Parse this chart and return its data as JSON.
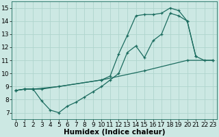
{
  "line1_x": [
    0,
    1,
    2,
    3,
    10,
    11,
    12,
    13,
    14,
    15,
    16,
    17,
    18,
    19,
    20,
    21,
    22,
    23
  ],
  "line1_y": [
    8.7,
    8.8,
    8.8,
    8.8,
    9.5,
    9.8,
    11.5,
    12.9,
    14.4,
    14.5,
    14.5,
    14.6,
    15.0,
    14.8,
    14.0,
    11.3,
    11.0,
    11.0
  ],
  "line2_x": [
    0,
    1,
    2,
    5,
    10,
    15,
    20,
    23
  ],
  "line2_y": [
    8.7,
    8.8,
    8.8,
    9.0,
    9.5,
    10.2,
    11.0,
    11.0
  ],
  "line3_x": [
    0,
    1,
    2,
    3,
    4,
    5,
    6,
    7,
    8,
    9,
    10,
    11,
    12,
    13,
    14,
    15,
    16,
    17,
    18,
    19,
    20,
    21
  ],
  "line3_y": [
    8.7,
    8.8,
    8.8,
    7.9,
    7.2,
    7.0,
    7.5,
    7.8,
    8.2,
    8.6,
    9.0,
    9.5,
    10.0,
    11.6,
    12.1,
    11.2,
    12.5,
    13.0,
    14.6,
    14.4,
    14.0,
    11.3
  ],
  "line_color": "#1a6b5e",
  "bg_color": "#cce8e3",
  "grid_color": "#afd4cd",
  "xlabel": "Humidex (Indice chaleur)",
  "xlim": [
    -0.5,
    23.5
  ],
  "ylim": [
    6.5,
    15.5
  ],
  "xticks": [
    0,
    1,
    2,
    3,
    4,
    5,
    6,
    7,
    8,
    9,
    10,
    11,
    12,
    13,
    14,
    15,
    16,
    17,
    18,
    19,
    20,
    21,
    22,
    23
  ],
  "yticks": [
    7,
    8,
    9,
    10,
    11,
    12,
    13,
    14,
    15
  ],
  "xlabel_fontsize": 7.5,
  "tick_fontsize": 6.5
}
